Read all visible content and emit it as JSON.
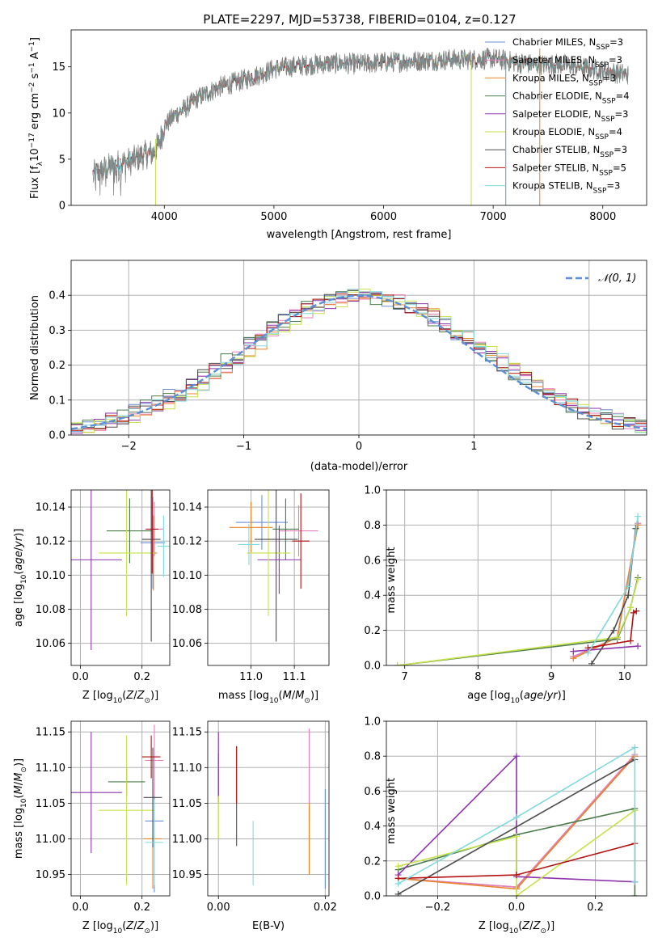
{
  "figure": {
    "title": "PLATE=2297, MJD=53738, FIBERID=0104, z=0.127"
  },
  "models": [
    {
      "name": "Chabrier MILES",
      "nssp": "3",
      "color": "#6a8fd8"
    },
    {
      "name": "Salpeter MILES",
      "nssp": "3",
      "color": "#e77fb8"
    },
    {
      "name": "Kroupa MILES",
      "nssp": "3",
      "color": "#e8832a"
    },
    {
      "name": "Chabrier ELODIE",
      "nssp": "4",
      "color": "#4a7a4a"
    },
    {
      "name": "Salpeter ELODIE",
      "nssp": "3",
      "color": "#8e35ae"
    },
    {
      "name": "Kroupa ELODIE",
      "nssp": "4",
      "color": "#c6e24a"
    },
    {
      "name": "Chabrier STELIB",
      "nssp": "3",
      "color": "#4d4d4d"
    },
    {
      "name": "Salpeter STELIB",
      "nssp": "5",
      "color": "#b31212"
    },
    {
      "name": "Kroupa STELIB",
      "nssp": "3",
      "color": "#7fd8dc"
    }
  ],
  "legend": {
    "nssp_label": "N",
    "nssp_sub": "SSP",
    "eq": "="
  },
  "colors": {
    "data": "#808080",
    "normal": "#5b8fd6",
    "grid": "#b0b0b0"
  },
  "chart_data": [
    {
      "id": "spectrum",
      "type": "line",
      "title": "PLATE=2297, MJD=53738, FIBERID=0104, z=0.127",
      "xlabel": "wavelength [Angstrom, rest frame]",
      "ylabel": "Flux [f_λ 10^-17 erg cm^-2 s^-1 A^-1]",
      "xlim": [
        3150,
        8400
      ],
      "ylim": [
        0,
        19
      ],
      "xticks": [
        4000,
        5000,
        6000,
        7000,
        8000
      ],
      "yticks": [
        0,
        5,
        10,
        15
      ],
      "continuum": {
        "x": [
          3350,
          3450,
          3600,
          3700,
          3800,
          3900,
          3950,
          4000,
          4100,
          4200,
          4300,
          4500,
          4700,
          4900,
          5000,
          5200,
          5400,
          5600,
          5800,
          6000,
          6200,
          6400,
          6600,
          6800,
          7000,
          7200,
          7400,
          7600,
          7800,
          8000,
          8200
        ],
        "y": [
          3.3,
          3.9,
          4.6,
          4.8,
          5.4,
          5.7,
          6.6,
          8.6,
          9.8,
          10.6,
          11.6,
          12.8,
          13.5,
          14.3,
          14.8,
          15.1,
          15.3,
          15.4,
          15.3,
          15.5,
          15.6,
          15.7,
          15.8,
          15.8,
          15.9,
          15.5,
          15.2,
          15.3,
          15.0,
          14.6,
          14.2
        ]
      },
      "drop_lines": [
        {
          "x": 3920,
          "ymin": 0,
          "ymax": 7.2
        },
        {
          "x": 6800,
          "ymin": 0,
          "ymax": 15.6
        },
        {
          "x": 7115,
          "ymin": 0,
          "ymax": 15.4
        },
        {
          "x": 7425,
          "ymin": 0,
          "ymax": 17.0
        }
      ]
    },
    {
      "id": "residuals",
      "type": "histogram",
      "xlabel": "(data-model)/error",
      "ylabel": "Normed distribution",
      "xlim": [
        -2.5,
        2.5
      ],
      "ylim": [
        0,
        0.5
      ],
      "xticks": [
        -2,
        -1,
        0,
        1,
        2
      ],
      "yticks": [
        0.0,
        0.1,
        0.2,
        0.3,
        0.4
      ],
      "bin_width": 0.1,
      "normal_label": "𝒩(0, 1)"
    },
    {
      "id": "age-vs-Z",
      "type": "errorbar",
      "xlabel": "Z [log10(Z/Z⊙)]",
      "ylabel": "age [log10(age/yr)]",
      "xlim": [
        -0.03,
        0.29
      ],
      "ylim": [
        10.047,
        10.15
      ],
      "xticks": [
        0.0,
        0.2
      ],
      "yticks": [
        10.06,
        10.08,
        10.1,
        10.12,
        10.14
      ],
      "points": [
        {
          "x": 0.235,
          "y": 10.119,
          "xerr": 0.04,
          "yerr": 0.027
        },
        {
          "x": 0.24,
          "y": 10.127,
          "xerr": 0.03,
          "yerr": 0.016
        },
        {
          "x": 0.237,
          "y": 10.113,
          "xerr": 0.012,
          "yerr": 0.022
        },
        {
          "x": 0.16,
          "y": 10.126,
          "xerr": 0.075,
          "yerr": 0.019
        },
        {
          "x": 0.035,
          "y": 10.109,
          "xerr": 0.1,
          "yerr": 0.053
        },
        {
          "x": 0.15,
          "y": 10.113,
          "xerr": 0.09,
          "yerr": 0.037
        },
        {
          "x": 0.23,
          "y": 10.121,
          "xerr": 0.03,
          "yerr": 0.06
        },
        {
          "x": 0.233,
          "y": 10.127,
          "xerr": 0.02,
          "yerr": 0.026
        },
        {
          "x": 0.27,
          "y": 10.117,
          "xerr": 0.02,
          "yerr": 0.018
        }
      ]
    },
    {
      "id": "age-vs-mass",
      "type": "errorbar",
      "xlabel": "mass [log10(M/M⊙)]",
      "ylabel": "",
      "xlim": [
        10.9,
        11.18
      ],
      "ylim": [
        10.047,
        10.15
      ],
      "xticks": [
        11.0,
        11.1
      ],
      "yticks": [
        10.06,
        10.08,
        10.1,
        10.12,
        10.14
      ],
      "points": [
        {
          "x": 11.025,
          "y": 10.131,
          "xerr": 0.06,
          "yerr": 0.016
        },
        {
          "x": 11.11,
          "y": 10.126,
          "xerr": 0.045,
          "yerr": 0.015
        },
        {
          "x": 11.0,
          "y": 10.128,
          "xerr": 0.05,
          "yerr": 0.015
        },
        {
          "x": 11.08,
          "y": 10.127,
          "xerr": 0.03,
          "yerr": 0.018
        },
        {
          "x": 11.065,
          "y": 10.109,
          "xerr": 0.05,
          "yerr": 0.02
        },
        {
          "x": 11.04,
          "y": 10.113,
          "xerr": 0.05,
          "yerr": 0.037
        },
        {
          "x": 11.058,
          "y": 10.121,
          "xerr": 0.05,
          "yerr": 0.06
        },
        {
          "x": 11.115,
          "y": 10.12,
          "xerr": 0.02,
          "yerr": 0.028
        },
        {
          "x": 10.995,
          "y": 10.118,
          "xerr": 0.025,
          "yerr": 0.012
        }
      ]
    },
    {
      "id": "mass-weight-vs-age",
      "type": "line",
      "xlabel": "age [log10(age/yr)]",
      "ylabel": "mass weight",
      "xlim": [
        6.75,
        10.3
      ],
      "ylim": [
        0,
        1
      ],
      "xticks": [
        7,
        8,
        9,
        10
      ],
      "yticks": [
        0.0,
        0.2,
        0.4,
        0.6,
        0.8,
        1.0
      ],
      "series": [
        {
          "x": [
            9.3,
            9.9,
            10.18
          ],
          "y": [
            0.05,
            0.16,
            0.8
          ]
        },
        {
          "x": [
            9.3,
            9.9,
            10.18
          ],
          "y": [
            0.05,
            0.16,
            0.81
          ]
        },
        {
          "x": [
            9.3,
            9.9,
            10.18
          ],
          "y": [
            0.04,
            0.16,
            0.8
          ]
        },
        {
          "x": [
            6.9,
            9.9,
            10.08,
            10.18
          ],
          "y": [
            0.0,
            0.15,
            0.33,
            0.5
          ]
        },
        {
          "x": [
            9.3,
            10.18
          ],
          "y": [
            0.08,
            0.11
          ]
        },
        {
          "x": [
            6.9,
            9.9,
            10.08,
            10.18
          ],
          "y": [
            0.0,
            0.16,
            0.33,
            0.49
          ]
        },
        {
          "x": [
            9.55,
            9.85,
            10.05,
            10.15
          ],
          "y": [
            0.01,
            0.2,
            0.4,
            0.78
          ]
        },
        {
          "x": [
            9.5,
            10.08,
            10.12,
            10.16
          ],
          "y": [
            0.1,
            0.14,
            0.3,
            0.31
          ]
        },
        {
          "x": [
            9.5,
            10.05,
            10.18
          ],
          "y": [
            0.07,
            0.45,
            0.85
          ]
        }
      ]
    },
    {
      "id": "mass-vs-Z",
      "type": "errorbar",
      "xlabel": "Z [log10(Z/Z⊙)]",
      "ylabel": "mass [log10(M/M⊙)]",
      "xlim": [
        -0.03,
        0.29
      ],
      "ylim": [
        10.92,
        11.165
      ],
      "xticks": [
        0.0,
        0.2
      ],
      "yticks": [
        10.95,
        11.0,
        11.05,
        11.1,
        11.15
      ],
      "points": [
        {
          "x": 0.24,
          "y": 11.025,
          "xerr": 0.03,
          "yerr": 0.1
        },
        {
          "x": 0.24,
          "y": 11.11,
          "xerr": 0.03,
          "yerr": 0.05
        },
        {
          "x": 0.235,
          "y": 11.0,
          "xerr": 0.03,
          "yerr": 0.07
        },
        {
          "x": 0.15,
          "y": 11.08,
          "xerr": 0.06,
          "yerr": 0.02
        },
        {
          "x": 0.035,
          "y": 11.065,
          "xerr": 0.1,
          "yerr": 0.085
        },
        {
          "x": 0.15,
          "y": 11.04,
          "xerr": 0.09,
          "yerr": 0.105
        },
        {
          "x": 0.235,
          "y": 11.058,
          "xerr": 0.03,
          "yerr": 0.07
        },
        {
          "x": 0.23,
          "y": 11.115,
          "xerr": 0.03,
          "yerr": 0.03
        },
        {
          "x": 0.24,
          "y": 10.995,
          "xerr": 0.03,
          "yerr": 0.06
        }
      ]
    },
    {
      "id": "mass-vs-ebv",
      "type": "errorbar",
      "xlabel": "E(B-V)",
      "ylabel": "",
      "xlim": [
        -0.002,
        0.0207
      ],
      "ylim": [
        10.92,
        11.165
      ],
      "xticks": [
        0.0,
        0.02
      ],
      "yticks": [
        10.95,
        11.0,
        11.05,
        11.1,
        11.15
      ],
      "points": [
        {
          "x": 0.02,
          "y": 11.0,
          "xerr": 0.0,
          "yerr": 0.07
        },
        {
          "x": 0.017,
          "y": 11.09,
          "xerr": 0.0,
          "yerr": 0.065
        },
        {
          "x": 0.017,
          "y": 11.0,
          "xerr": 0.0,
          "yerr": 0.05
        },
        {
          "x": 0.0,
          "y": 11.09,
          "xerr": 0.0,
          "yerr": 0.03
        },
        {
          "x": 0.0,
          "y": 11.1,
          "xerr": 0.0,
          "yerr": 0.05
        },
        {
          "x": 0.0,
          "y": 11.03,
          "xerr": 0.0,
          "yerr": 0.03
        },
        {
          "x": 0.0034,
          "y": 11.06,
          "xerr": 0.0,
          "yerr": 0.07
        },
        {
          "x": 0.0034,
          "y": 11.09,
          "xerr": 0.0,
          "yerr": 0.04
        },
        {
          "x": 0.0065,
          "y": 10.98,
          "xerr": 0.0,
          "yerr": 0.045
        }
      ]
    },
    {
      "id": "mass-weight-vs-Z",
      "type": "line",
      "xlabel": "Z [log10(Z/Z⊙)]",
      "ylabel": "mass weight",
      "xlim": [
        -0.33,
        0.33
      ],
      "ylim": [
        0,
        1
      ],
      "xticks": [
        -0.2,
        0.0,
        0.2
      ],
      "yticks": [
        0.0,
        0.2,
        0.4,
        0.6,
        0.8,
        1.0
      ],
      "series": [
        {
          "x": [
            -0.3,
            0.0,
            0.3
          ],
          "y": [
            0.1,
            0.05,
            0.8
          ]
        },
        {
          "x": [
            -0.3,
            0.0,
            0.3
          ],
          "y": [
            0.1,
            0.05,
            0.81
          ]
        },
        {
          "x": [
            -0.3,
            0.0,
            0.3
          ],
          "y": [
            0.1,
            0.04,
            0.8
          ]
        },
        {
          "x": [
            -0.3,
            0.0,
            0.3,
            0.3
          ],
          "y": [
            0.15,
            0.35,
            0.5,
            0.0
          ]
        },
        {
          "x": [
            -0.3,
            0.0,
            0.0,
            0.3
          ],
          "y": [
            0.12,
            0.8,
            0.11,
            0.08
          ]
        },
        {
          "x": [
            -0.3,
            0.0,
            0.0,
            0.3
          ],
          "y": [
            0.17,
            0.34,
            0.0,
            0.49
          ]
        },
        {
          "x": [
            -0.3,
            0.3
          ],
          "y": [
            0.01,
            0.78
          ]
        },
        {
          "x": [
            -0.3,
            0.0,
            0.3
          ],
          "y": [
            0.1,
            0.12,
            0.3
          ]
        },
        {
          "x": [
            -0.3,
            0.0,
            0.3,
            0.3
          ],
          "y": [
            0.07,
            0.45,
            0.85,
            0.08
          ]
        }
      ]
    }
  ]
}
